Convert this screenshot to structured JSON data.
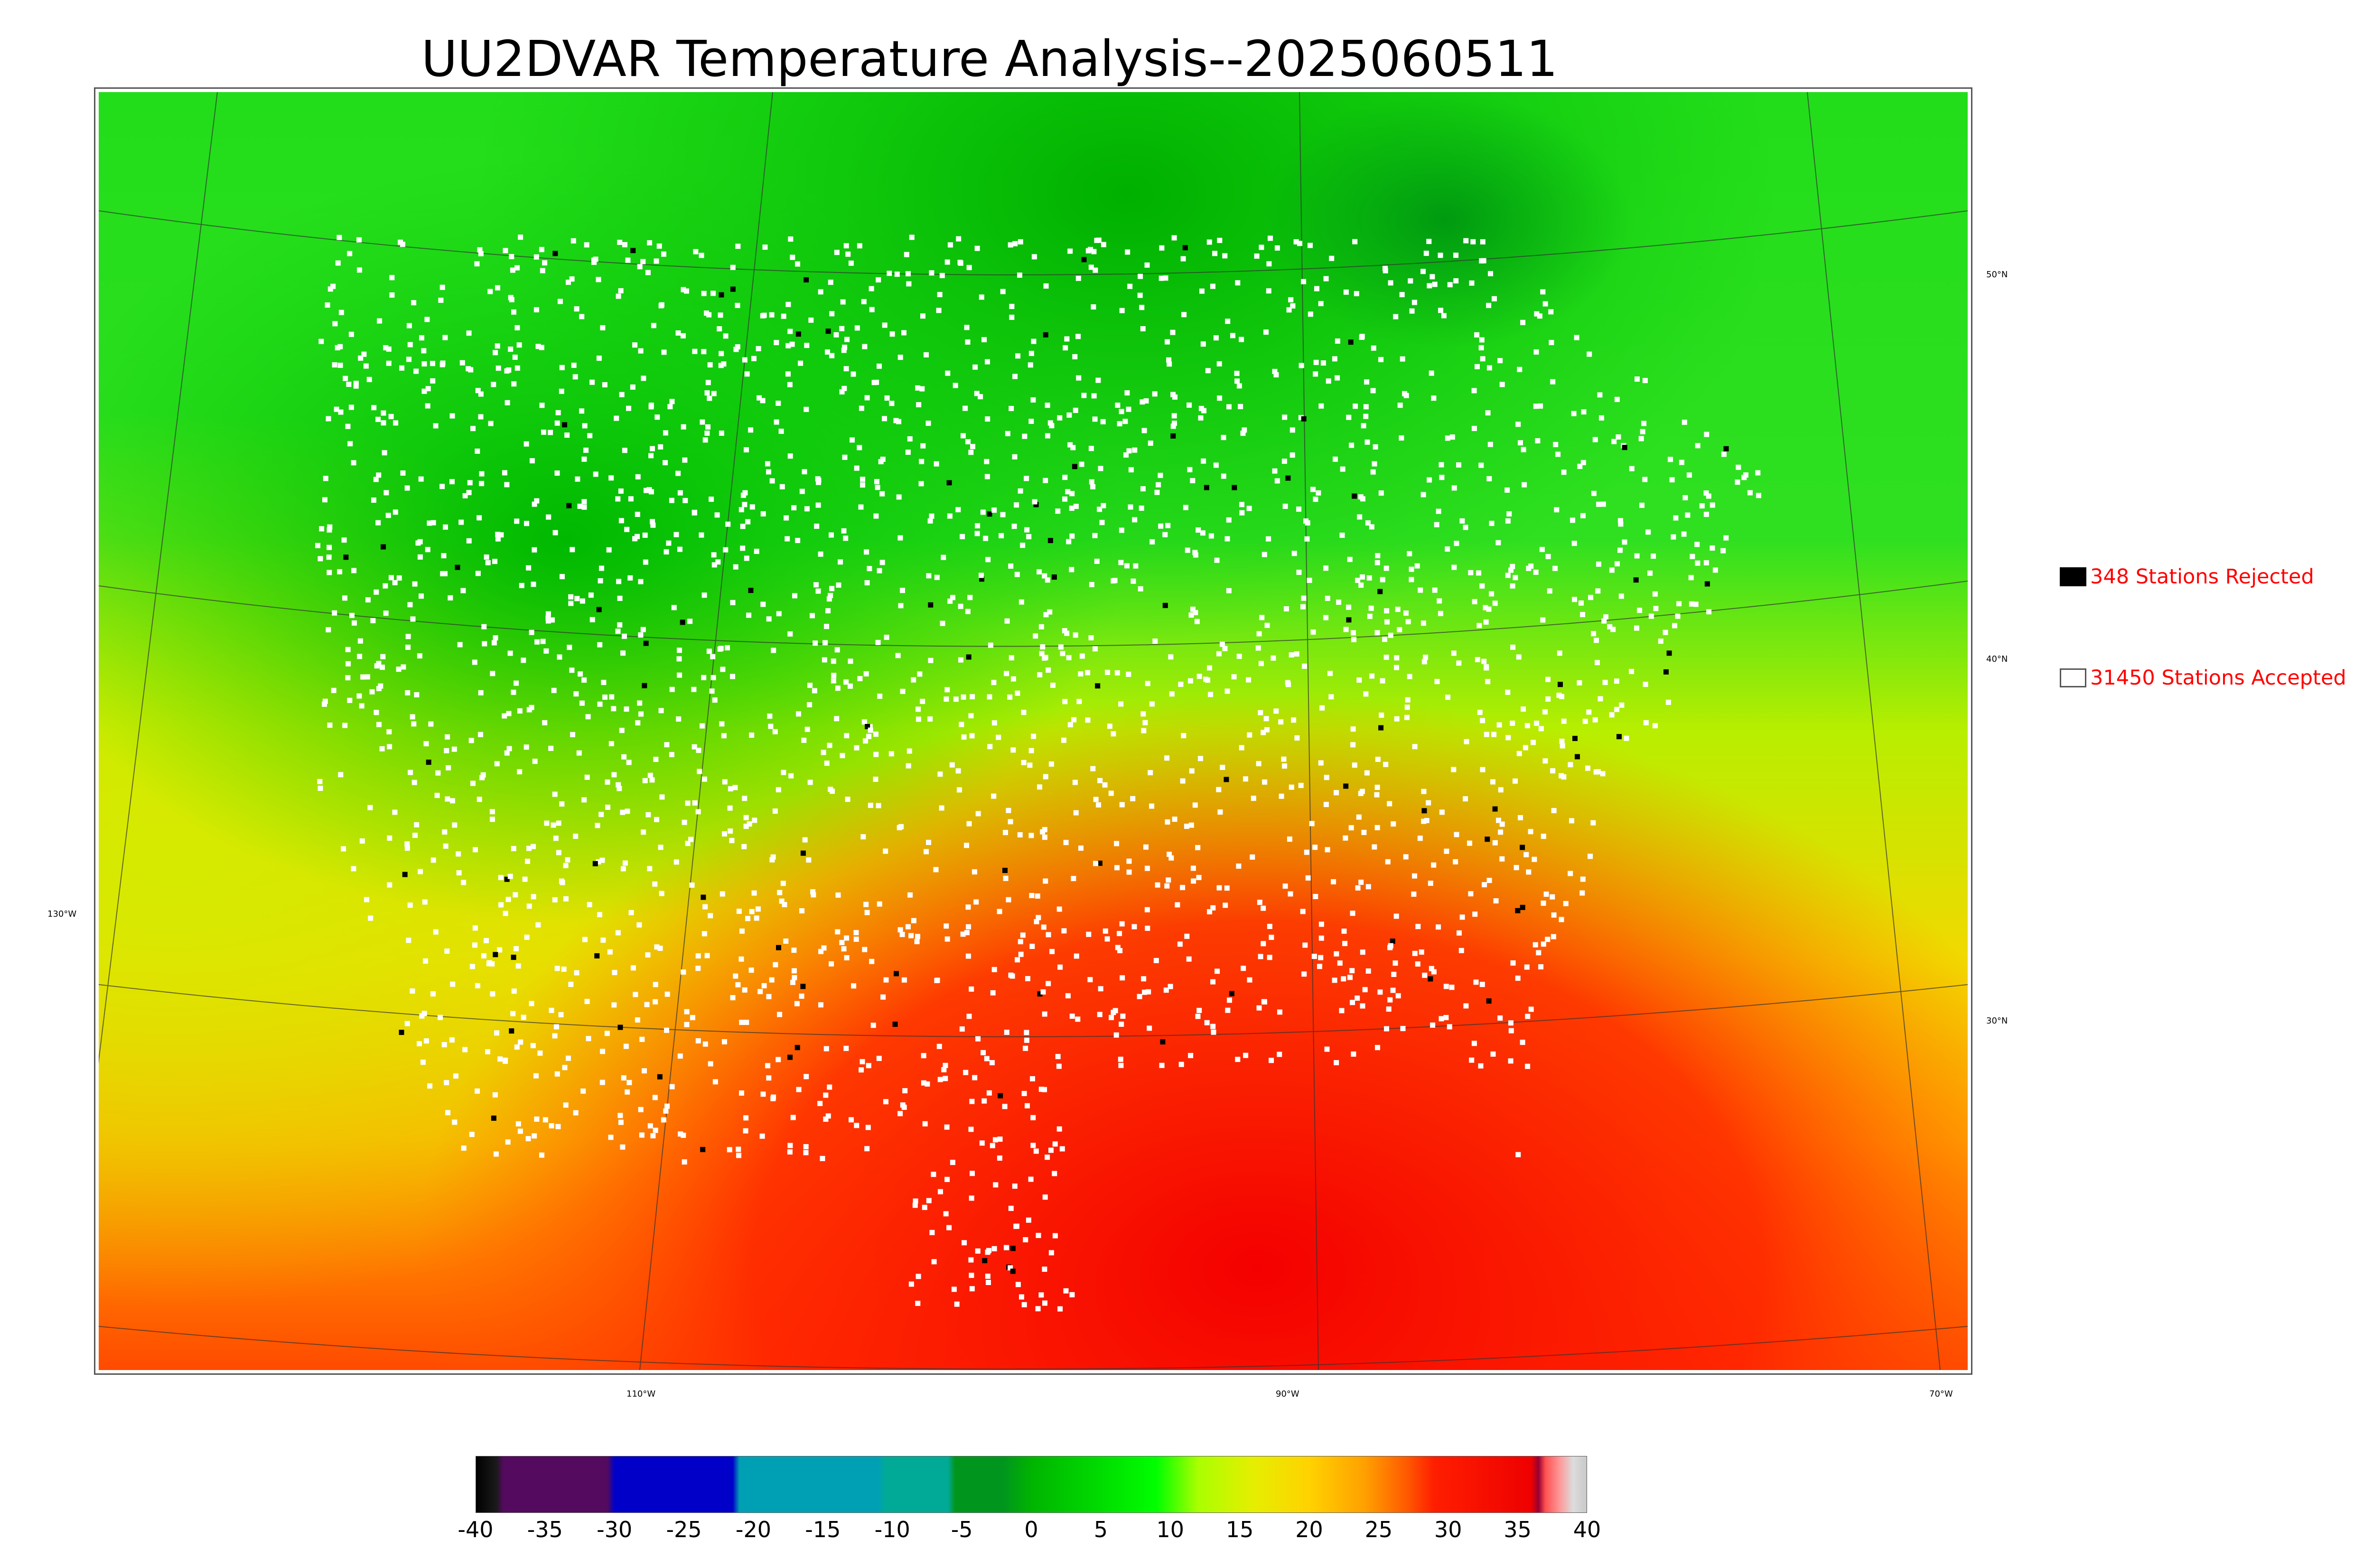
{
  "title": "UU2DVAR Temperature Analysis--2025060511",
  "legend": {
    "rejected_label": "348 Stations Rejected",
    "accepted_label": "31450 Stations Accepted",
    "rejected_color": "#000000",
    "accepted_color": "#ffffff"
  },
  "graticule": {
    "lat_labels": [
      "50°N",
      "40°N",
      "30°N"
    ],
    "lon_labels": [
      "130°W",
      "110°W",
      "90°W",
      "70°W"
    ]
  },
  "colorbar": {
    "ticks": [
      "-40",
      "-35",
      "-30",
      "-25",
      "-20",
      "-15",
      "-10",
      "-5",
      "0",
      "5",
      "10",
      "15",
      "20",
      "25",
      "30",
      "35",
      "40"
    ],
    "range": [
      -40,
      40
    ],
    "stops": [
      {
        "v": -40,
        "c": "#000000"
      },
      {
        "v": -38.5,
        "c": "#1a1a1a"
      },
      {
        "v": -38,
        "c": "#540a5e"
      },
      {
        "v": -30.5,
        "c": "#540a5e"
      },
      {
        "v": -30,
        "c": "#0000c8"
      },
      {
        "v": -21.5,
        "c": "#0000c8"
      },
      {
        "v": -21,
        "c": "#00a0b4"
      },
      {
        "v": -11,
        "c": "#00a0b4"
      },
      {
        "v": -10.5,
        "c": "#00aa96"
      },
      {
        "v": -6,
        "c": "#00aa96"
      },
      {
        "v": -5.5,
        "c": "#00961e"
      },
      {
        "v": -2,
        "c": "#00961e"
      },
      {
        "v": 0,
        "c": "#00b400"
      },
      {
        "v": 5,
        "c": "#00dc00"
      },
      {
        "v": 9,
        "c": "#00ff00"
      },
      {
        "v": 12,
        "c": "#aaff00"
      },
      {
        "v": 16,
        "c": "#e6ee00"
      },
      {
        "v": 20,
        "c": "#ffd200"
      },
      {
        "v": 24,
        "c": "#ffa000"
      },
      {
        "v": 27,
        "c": "#ff5a00"
      },
      {
        "v": 29,
        "c": "#ff1e00"
      },
      {
        "v": 36,
        "c": "#ee0000"
      },
      {
        "v": 36.5,
        "c": "#960032"
      },
      {
        "v": 37,
        "c": "#ff5050"
      },
      {
        "v": 38,
        "c": "#ff9696"
      },
      {
        "v": 39,
        "c": "#dcdcdc"
      },
      {
        "v": 40,
        "c": "#c8c8c8"
      }
    ]
  }
}
